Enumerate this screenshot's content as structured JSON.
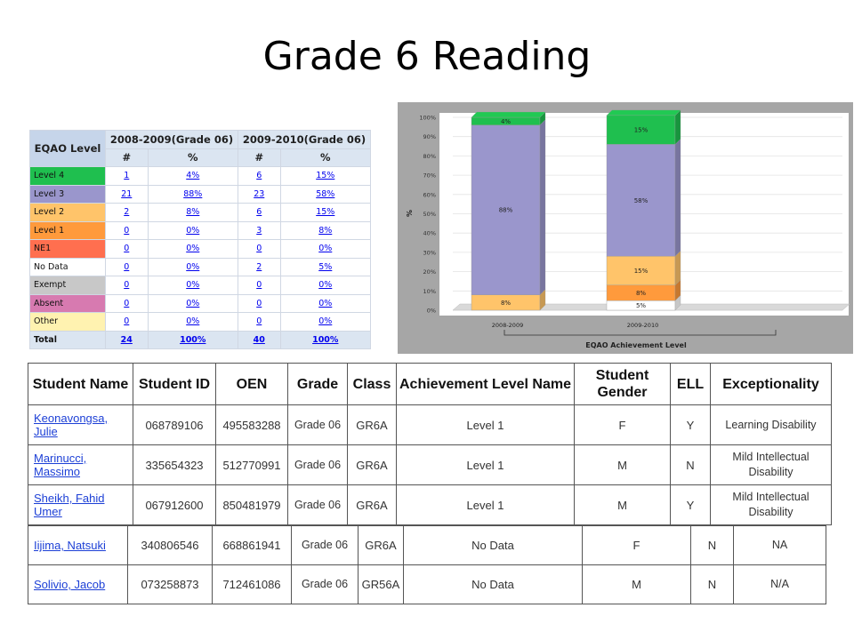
{
  "slide": {
    "title": "Grade 6 Reading"
  },
  "summary_table": {
    "header_label": "EQAO Level",
    "years": [
      "2008-2009(Grade 06)",
      "2009-2010(Grade 06)"
    ],
    "subheaders": [
      "#",
      "%",
      "#",
      "%"
    ],
    "rows": [
      {
        "label": "Level 4",
        "color": "#1fbf4f",
        "c1": "1",
        "p1": "4%",
        "c2": "6",
        "p2": "15%"
      },
      {
        "label": "Level 3",
        "color": "#9a96cc",
        "c1": "21",
        "p1": "88%",
        "c2": "23",
        "p2": "58%"
      },
      {
        "label": "Level 2",
        "color": "#ffc46a",
        "c1": "2",
        "p1": "8%",
        "c2": "6",
        "p2": "15%"
      },
      {
        "label": "Level 1",
        "color": "#ff9a3c",
        "c1": "0",
        "p1": "0%",
        "c2": "3",
        "p2": "8%"
      },
      {
        "label": "NE1",
        "color": "#ff6f4f",
        "c1": "0",
        "p1": "0%",
        "c2": "0",
        "p2": "0%"
      },
      {
        "label": "No Data",
        "color": "#ffffff",
        "c1": "0",
        "p1": "0%",
        "c2": "2",
        "p2": "5%"
      },
      {
        "label": "Exempt",
        "color": "#c8c8c8",
        "c1": "0",
        "p1": "0%",
        "c2": "0",
        "p2": "0%"
      },
      {
        "label": "Absent",
        "color": "#d77ab0",
        "c1": "0",
        "p1": "0%",
        "c2": "0",
        "p2": "0%"
      },
      {
        "label": "Other",
        "color": "#fff2b0",
        "c1": "0",
        "p1": "0%",
        "c2": "0",
        "p2": "0%"
      }
    ],
    "total": {
      "label": "Total",
      "c1": "24",
      "p1": "100%",
      "c2": "40",
      "p2": "100%"
    }
  },
  "chart_data": {
    "type": "bar",
    "stacked": true,
    "categories": [
      "2008-2009",
      "2009-2010"
    ],
    "ylabel": "%",
    "xlabel": "EQAO Achievement Level",
    "yticks": [
      "0%",
      "10%",
      "20%",
      "30%",
      "40%",
      "50%",
      "60%",
      "70%",
      "80%",
      "90%",
      "100%"
    ],
    "ylim": [
      0,
      100
    ],
    "series": [
      {
        "values": [
          0,
          5
        ],
        "labels": [
          "",
          "5%"
        ],
        "color": "#ffffff"
      },
      {
        "values": [
          0,
          8
        ],
        "labels": [
          "",
          "8%"
        ],
        "color": "#ff9a3c"
      },
      {
        "values": [
          8,
          15
        ],
        "labels": [
          "8%",
          "15%"
        ],
        "color": "#ffc46a"
      },
      {
        "values": [
          88,
          58
        ],
        "labels": [
          "88%",
          "58%"
        ],
        "color": "#9a96cc"
      },
      {
        "values": [
          4,
          15
        ],
        "labels": [
          "4%",
          "15%"
        ],
        "color": "#1fbf4f"
      }
    ]
  },
  "students": {
    "headers": [
      "Student Name",
      "Student ID",
      "OEN",
      "Grade",
      "Class",
      "Achievement Level Name",
      "Student Gender",
      "ELL",
      "Exceptionality"
    ],
    "rows_top": [
      {
        "name": "Keonavongsa, Julie",
        "id": "068789106",
        "oen": "495583288",
        "grade": "Grade 06",
        "class": "GR6A",
        "level": "Level 1",
        "gender": "F",
        "ell": "Y",
        "exc": "Learning Disability"
      },
      {
        "name": "Marinucci, Massimo",
        "id": "335654323",
        "oen": "512770991",
        "grade": "Grade 06",
        "class": "GR6A",
        "level": "Level 1",
        "gender": "M",
        "ell": "N",
        "exc": "Mild Intellectual Disability"
      },
      {
        "name": "Sheikh, Fahid Umer",
        "id": "067912600",
        "oen": "850481979",
        "grade": "Grade 06",
        "class": "GR6A",
        "level": "Level 1",
        "gender": "M",
        "ell": "Y",
        "exc": "Mild Intellectual Disability"
      }
    ],
    "rows_bottom": [
      {
        "name": "Iijima, Natsuki",
        "id": "340806546",
        "oen": "668861941",
        "grade": "Grade 06",
        "class": "GR6A",
        "level": "No Data",
        "gender": "F",
        "ell": "N",
        "exc": "NA"
      },
      {
        "name": "Solivio, Jacob",
        "id": "073258873",
        "oen": "712461086",
        "grade": "Grade 06",
        "class": "GR56A",
        "level": "No Data",
        "gender": "M",
        "ell": "N",
        "exc": "N/A"
      }
    ]
  }
}
